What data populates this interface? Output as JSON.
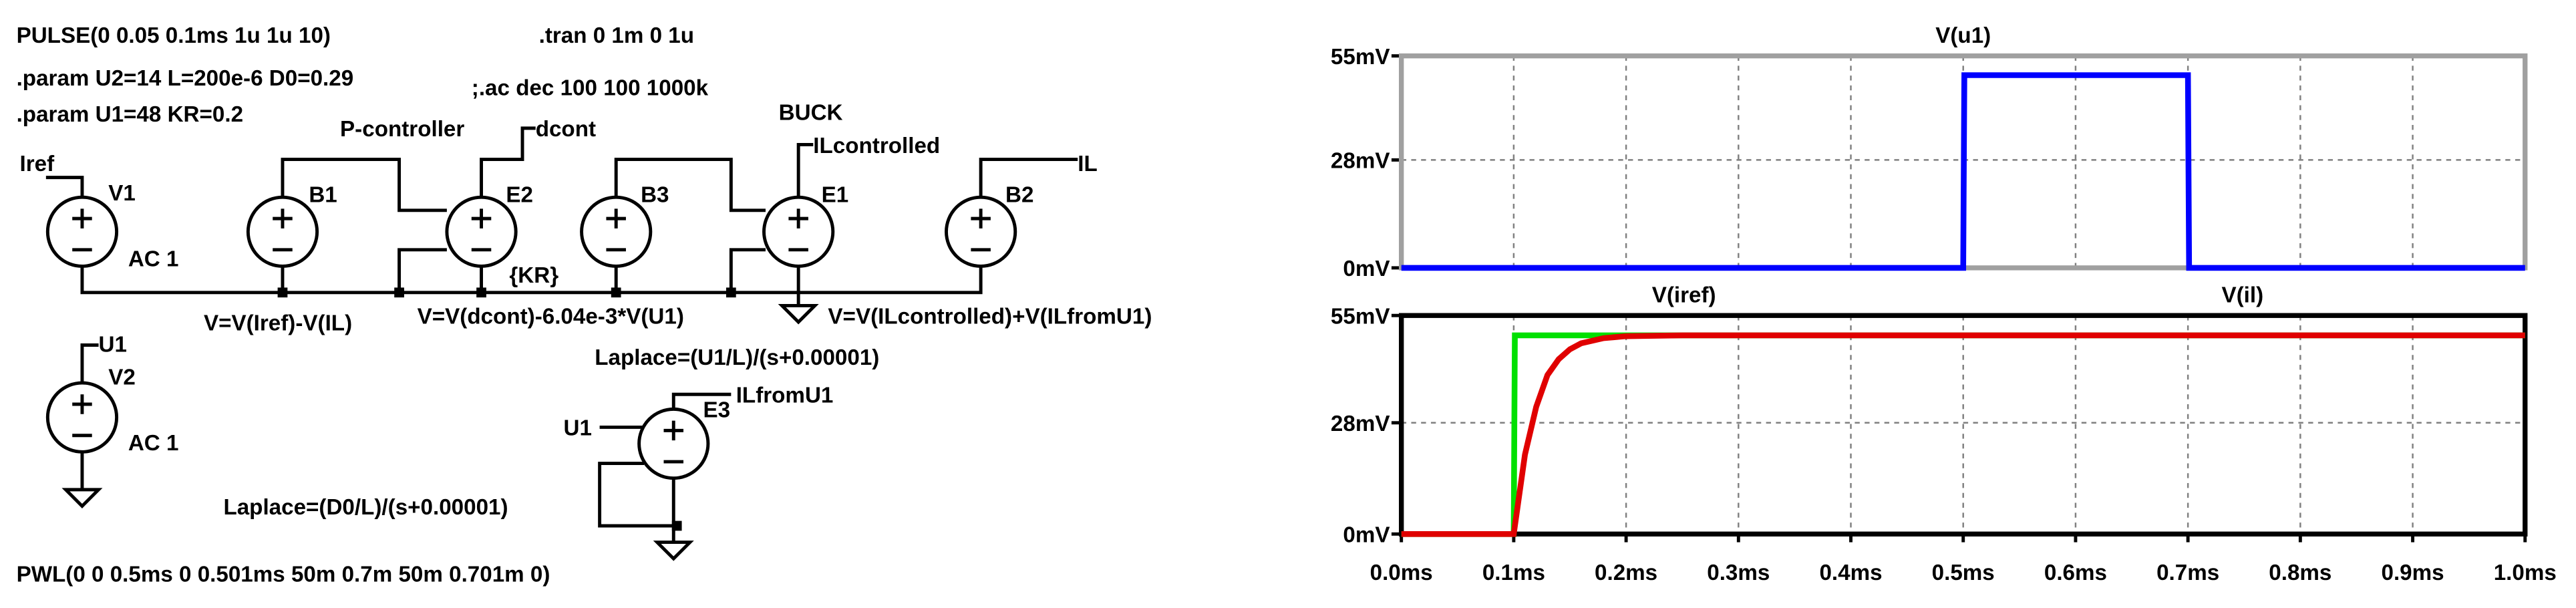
{
  "schematic": {
    "texts": [
      "PULSE(0 0.05 0.1ms 1u 1u 10)",
      ".param U2=14 L=200e-6 D0=0.29",
      ".param U1=48 KR=0.2",
      ".tran 0 1m 0 1u",
      ";.ac dec 100 100 1000k",
      "P-controller",
      "dcont",
      "BUCK",
      "ILcontrolled",
      "IL",
      "Iref",
      "V1",
      "AC 1",
      "B1",
      "E2",
      "B3",
      "E1",
      "B2",
      "{KR}",
      "V=V(Iref)-V(IL)",
      "V=V(dcont)-6.04e-3*V(U1)",
      "V=V(ILcontrolled)+V(ILfromU1)",
      "Laplace=(U1/L)/(s+0.00001)",
      "U1",
      "V2",
      "AC 1",
      "ILfromU1",
      "U1",
      "E3",
      "Laplace=(D0/L)/(s+0.00001)",
      "PWL(0 0 0.5ms 0 0.501ms 50m 0.7m 50m 0.701m 0)"
    ]
  },
  "chart_data": [
    {
      "type": "line",
      "frame_color": "#a0a0a0",
      "grid": true,
      "xlim": [
        0,
        1.0
      ],
      "ylim": [
        0,
        55
      ],
      "yticks": [
        {
          "value": 0,
          "label": "0mV"
        },
        {
          "value": 28,
          "label": "28mV"
        },
        {
          "value": 55,
          "label": "55mV"
        }
      ],
      "series": [
        {
          "name": "V(u1)",
          "color": "#0000ff",
          "x": [
            0,
            0.5,
            0.501,
            0.7,
            0.701,
            1.0
          ],
          "values": [
            0,
            0,
            50,
            50,
            0,
            0
          ]
        }
      ]
    },
    {
      "type": "line",
      "frame_color": "#000000",
      "grid": true,
      "xlim": [
        0,
        1.0
      ],
      "ylim": [
        0,
        55
      ],
      "yticks": [
        {
          "value": 0,
          "label": "0mV"
        },
        {
          "value": 28,
          "label": "28mV"
        },
        {
          "value": 55,
          "label": "55mV"
        }
      ],
      "xticks": [
        {
          "value": 0,
          "label": "0.0ms"
        },
        {
          "value": 0.1,
          "label": "0.1ms"
        },
        {
          "value": 0.2,
          "label": "0.2ms"
        },
        {
          "value": 0.3,
          "label": "0.3ms"
        },
        {
          "value": 0.4,
          "label": "0.4ms"
        },
        {
          "value": 0.5,
          "label": "0.5ms"
        },
        {
          "value": 0.6,
          "label": "0.6ms"
        },
        {
          "value": 0.7,
          "label": "0.7ms"
        },
        {
          "value": 0.8,
          "label": "0.8ms"
        },
        {
          "value": 0.9,
          "label": "0.9ms"
        },
        {
          "value": 1.0,
          "label": "1.0ms"
        }
      ],
      "series": [
        {
          "name": "V(iref)",
          "color": "#00e000",
          "x": [
            0,
            0.1,
            0.101,
            1.0
          ],
          "values": [
            0,
            0,
            50,
            50
          ]
        },
        {
          "name": "V(il)",
          "color": "#e00000",
          "x": [
            0,
            0.1,
            0.11,
            0.12,
            0.13,
            0.14,
            0.15,
            0.16,
            0.18,
            0.2,
            0.25,
            1.0
          ],
          "values": [
            0,
            0,
            20,
            32,
            40,
            44,
            46.5,
            48,
            49.3,
            49.8,
            50,
            50
          ]
        }
      ]
    }
  ]
}
